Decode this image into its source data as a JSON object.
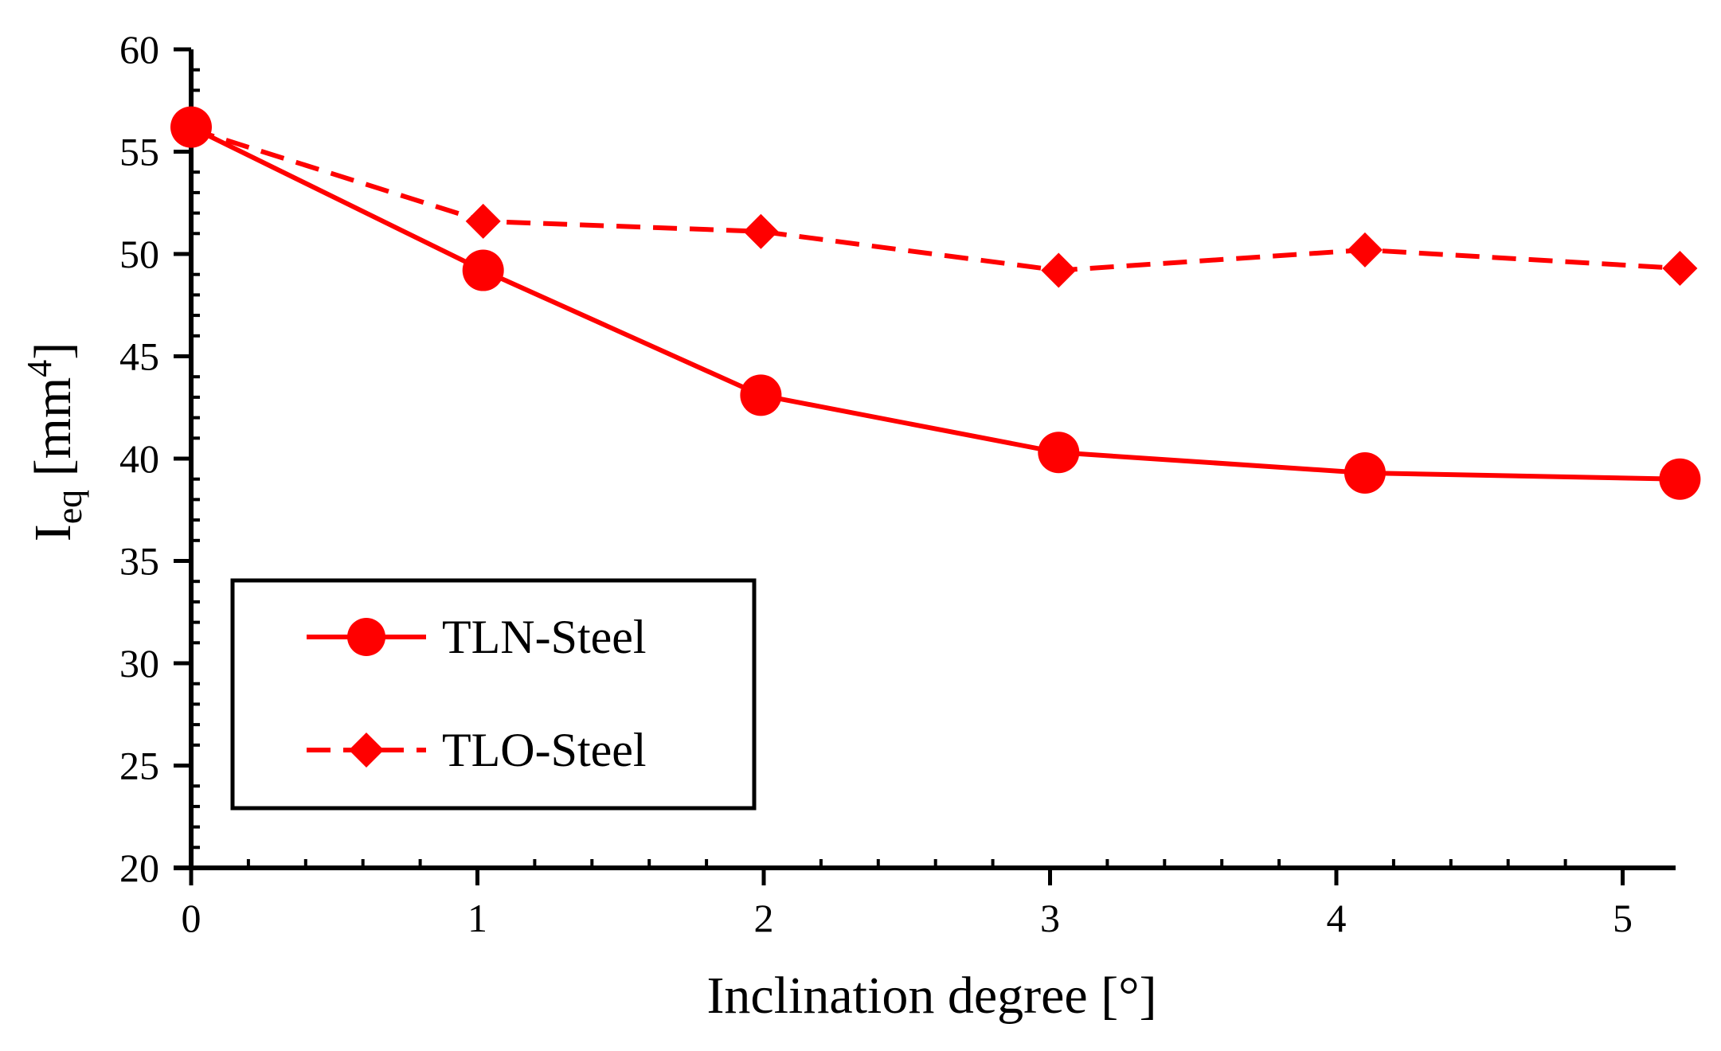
{
  "chart_data": {
    "type": "line",
    "title": "",
    "xlabel": "Inclination  degree [°]",
    "ylabel": {
      "main": "I",
      "subscript": "eq",
      "unit_prefix": " [mm",
      "unit_superscript": "4",
      "unit_suffix": "]"
    },
    "xlim": [
      0,
      5.2
    ],
    "ylim": [
      20,
      60
    ],
    "x_ticks": [
      0,
      1,
      2,
      3,
      4,
      5
    ],
    "x_tick_labels": [
      "0",
      "1",
      "2",
      "3",
      "4",
      "5"
    ],
    "y_ticks": [
      20,
      25,
      30,
      35,
      40,
      45,
      50,
      55,
      60
    ],
    "y_tick_labels": [
      "20",
      "25",
      "30",
      "35",
      "40",
      "45",
      "50",
      "55",
      "60"
    ],
    "grid": false,
    "legend_position": "bottom-left",
    "series": [
      {
        "name": "TLN-Steel",
        "line_style": "solid",
        "marker": "circle",
        "color": "#ff0000",
        "x": [
          0,
          1.02,
          1.99,
          3.03,
          4.1,
          5.2
        ],
        "y": [
          56.2,
          49.2,
          43.1,
          40.3,
          39.3,
          39.0
        ]
      },
      {
        "name": "TLO-Steel",
        "line_style": "dashed",
        "marker": "diamond",
        "color": "#ff0000",
        "x": [
          0,
          1.02,
          1.99,
          3.03,
          4.1,
          5.2
        ],
        "y": [
          56.1,
          51.6,
          51.1,
          49.2,
          50.2,
          49.3
        ]
      }
    ]
  }
}
